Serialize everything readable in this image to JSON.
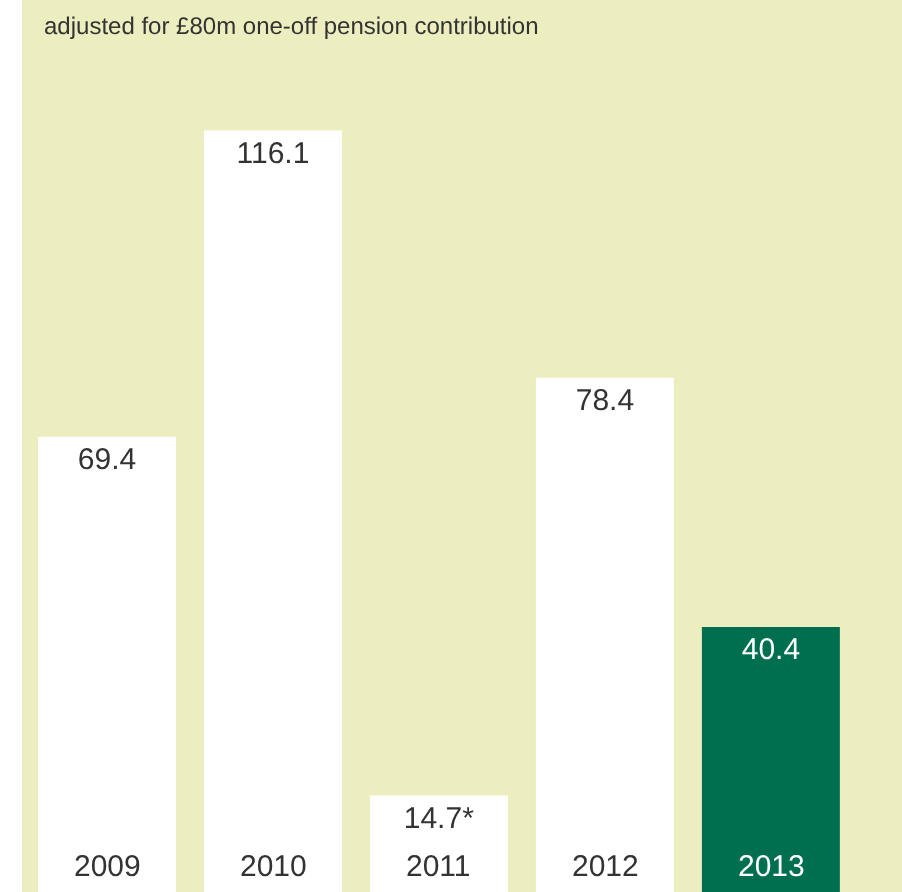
{
  "chart_data": {
    "type": "bar",
    "annotations": [
      "adjusted for £80m one-off pension contribution"
    ],
    "categories": [
      "2009",
      "2010",
      "2011",
      "2012",
      "2013"
    ],
    "values": [
      69.4,
      116.1,
      14.7,
      78.4,
      40.4
    ],
    "colors": [
      "#ffffff",
      "#ffffff",
      "#ffffff",
      "#ffffff",
      "#006f50"
    ],
    "value_labels": [
      "69.4",
      "116.1",
      "14.7*",
      "78.4",
      "40.4"
    ],
    "ylim": [
      0,
      136
    ],
    "tick_labels": "x",
    "grid": false
  }
}
